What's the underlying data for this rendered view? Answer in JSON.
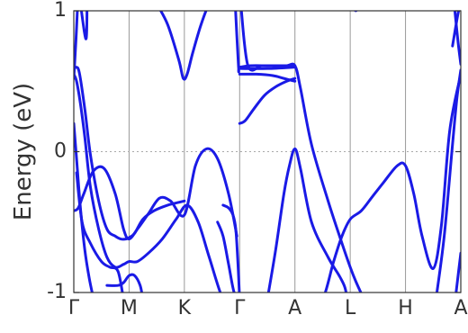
{
  "chart_data": {
    "type": "line",
    "title": "",
    "xlabel": "",
    "ylabel": "Energy (eV)",
    "ylim": [
      -1,
      1
    ],
    "yticks": [
      -1,
      0,
      1
    ],
    "ytick_labels": [
      "-1",
      "0",
      "1"
    ],
    "x_range": [
      0,
      7
    ],
    "kpoints": [
      {
        "label": "Γ",
        "x": 0
      },
      {
        "label": "M",
        "x": 1
      },
      {
        "label": "K",
        "x": 2
      },
      {
        "label": "Γ",
        "x": 3
      },
      {
        "label": "A",
        "x": 4
      },
      {
        "label": "L",
        "x": 5
      },
      {
        "label": "H",
        "x": 6
      },
      {
        "label": "A",
        "x": 7
      }
    ],
    "fermi_level": 0,
    "fermi_line_style": "dotted",
    "vertical_grid_at_kpoints": true,
    "line_color": "#1a1ae6",
    "bands": [
      {
        "x": [
          0,
          0.04,
          0.07
        ],
        "y": [
          0.52,
          0.8,
          1.05
        ]
      },
      {
        "x": [
          0.12,
          0.22,
          0.24
        ],
        "y": [
          1.05,
          0.8,
          1.05
        ]
      },
      {
        "x": [
          0,
          0.08,
          0.18,
          0.35,
          0.55,
          0.75,
          0.9,
          1.0,
          1.15,
          1.35,
          1.55,
          1.75,
          2.0,
          2.2,
          2.4,
          2.6,
          2.8,
          2.95
        ],
        "y": [
          -0.42,
          -0.4,
          -0.3,
          -0.14,
          -0.12,
          -0.3,
          -0.55,
          -0.62,
          -0.55,
          -0.44,
          -0.33,
          -0.35,
          -0.45,
          -0.1,
          0.02,
          -0.05,
          -0.3,
          -0.6
        ]
      },
      {
        "x": [
          0,
          0.04,
          0.1,
          0.2,
          0.3,
          0.45,
          0.6,
          0.75,
          0.85,
          0.95,
          1.0,
          1.1,
          1.25,
          1.45,
          1.7,
          1.9,
          2.0
        ],
        "y": [
          0.58,
          0.6,
          0.56,
          0.3,
          -0.02,
          -0.35,
          -0.55,
          -0.6,
          -0.62,
          -0.62,
          -0.61,
          -0.58,
          -0.48,
          -0.42,
          -0.38,
          -0.36,
          -0.35
        ]
      },
      {
        "x": [
          0,
          0.05,
          0.12,
          0.2,
          0.3,
          0.45,
          0.6,
          0.75,
          0.9,
          1.0,
          1.15,
          1.35,
          1.6,
          1.85,
          2.05,
          2.25,
          2.45,
          2.7,
          2.85,
          3.0
        ],
        "y": [
          0.55,
          0.5,
          0.34,
          0.1,
          -0.25,
          -0.55,
          -0.75,
          -0.82,
          -0.8,
          -0.78,
          -0.78,
          -0.72,
          -0.62,
          -0.48,
          -0.38,
          -0.5,
          -0.75,
          -1.05,
          -1.05,
          -1.05
        ]
      },
      {
        "x": [
          0,
          0.05,
          0.12,
          0.2,
          0.28,
          0.36
        ],
        "y": [
          0.2,
          -0.05,
          -0.4,
          -0.7,
          -0.9,
          -1.05
        ]
      },
      {
        "x": [
          0.05,
          0.15,
          0.3,
          0.5,
          0.65,
          0.8,
          0.9
        ],
        "y": [
          -0.15,
          -0.5,
          -0.65,
          -0.78,
          -0.82,
          -0.85,
          -1.05
        ]
      },
      {
        "x": [
          0.6,
          0.8,
          0.9,
          1.0,
          1.1,
          1.2,
          1.25
        ],
        "y": [
          -0.95,
          -0.95,
          -0.93,
          -0.88,
          -0.88,
          -0.95,
          -1.05
        ]
      },
      {
        "x": [
          1.5,
          1.7,
          1.9,
          1.98,
          2.05,
          2.15,
          2.3,
          2.45,
          2.55
        ],
        "y": [
          1.05,
          0.9,
          0.65,
          0.52,
          0.55,
          0.7,
          0.9,
          1.05,
          1.05
        ]
      },
      {
        "x": [
          2.6,
          2.7,
          2.8,
          2.9,
          3.0,
          3.05,
          3.15
        ],
        "y": [
          -0.5,
          -0.6,
          -0.8,
          -1.0,
          -1.05,
          -1.05,
          -1.05
        ]
      },
      {
        "x": [
          2.7,
          2.8,
          2.88,
          2.93,
          2.97,
          3.0
        ],
        "y": [
          -0.38,
          -0.4,
          -0.45,
          -0.55,
          -0.8,
          -1.05
        ]
      },
      {
        "x": [
          2.92,
          2.98,
          3.0,
          3.2,
          3.5,
          3.8,
          4.0
        ],
        "y": [
          1.05,
          0.6,
          0.6,
          0.61,
          0.61,
          0.61,
          0.61
        ]
      },
      {
        "x": [
          3.0,
          3.5,
          4.0
        ],
        "y": [
          0.59,
          0.59,
          0.6
        ]
      },
      {
        "x": [
          3.0,
          3.3,
          3.6,
          3.8,
          4.0
        ],
        "y": [
          0.55,
          0.55,
          0.54,
          0.52,
          0.5
        ]
      },
      {
        "x": [
          3.0,
          3.1,
          3.25,
          3.45,
          3.65,
          3.85,
          4.0
        ],
        "y": [
          0.2,
          0.22,
          0.3,
          0.4,
          0.46,
          0.5,
          0.52
        ]
      },
      {
        "x": [
          3.02,
          3.15,
          3.4,
          3.65,
          3.85,
          4.0,
          4.1,
          4.3,
          4.6,
          4.85,
          5.0,
          5.1,
          5.25
        ],
        "y": [
          1.05,
          0.61,
          0.61,
          0.61,
          0.61,
          0.61,
          0.45,
          0.05,
          -0.35,
          -0.65,
          -0.82,
          -0.92,
          -1.05
        ]
      },
      {
        "x": [
          3.5,
          3.65,
          3.8,
          3.9,
          4.0,
          4.1,
          4.3,
          4.6,
          4.8,
          4.9,
          4.95
        ],
        "y": [
          -1.05,
          -0.7,
          -0.3,
          -0.1,
          0.02,
          -0.12,
          -0.5,
          -0.75,
          -0.88,
          -0.96,
          -1.05
        ]
      },
      {
        "x": [
          4.3,
          4.5,
          4.7,
          4.85,
          5.0,
          5.2,
          5.4,
          5.6,
          5.85,
          6.0,
          6.15,
          6.3,
          6.5,
          6.65,
          6.8,
          7.0
        ],
        "y": [
          -1.05,
          -1.05,
          -0.78,
          -0.6,
          -0.48,
          -0.42,
          -0.32,
          -0.22,
          -0.1,
          -0.1,
          -0.3,
          -0.6,
          -0.83,
          -0.52,
          0.15,
          0.55
        ]
      },
      {
        "x": [
          6.55,
          6.7,
          6.85,
          6.93,
          7.0
        ],
        "y": [
          -1.05,
          -0.6,
          0.05,
          0.38,
          0.58
        ]
      },
      {
        "x": [
          6.85,
          6.95,
          7.0
        ],
        "y": [
          0.75,
          0.98,
          1.05
        ]
      },
      {
        "x": [
          6.88,
          6.95,
          7.0
        ],
        "y": [
          1.05,
          0.78,
          0.62
        ]
      },
      {
        "x": [
          6.9,
          6.96,
          7.0
        ],
        "y": [
          -1.05,
          -0.85,
          -0.72
        ]
      },
      {
        "x": [
          5.02,
          5.1,
          5.18
        ],
        "y": [
          1.05,
          1.0,
          1.05
        ]
      }
    ]
  }
}
